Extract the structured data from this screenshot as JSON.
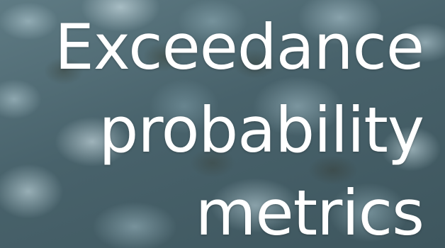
{
  "background": {
    "description_icon": "pebbles-photo",
    "tint": "#4a6670"
  },
  "title": {
    "lines": [
      "Exceedance",
      "probability",
      "metrics"
    ],
    "color": "#ffffff"
  }
}
